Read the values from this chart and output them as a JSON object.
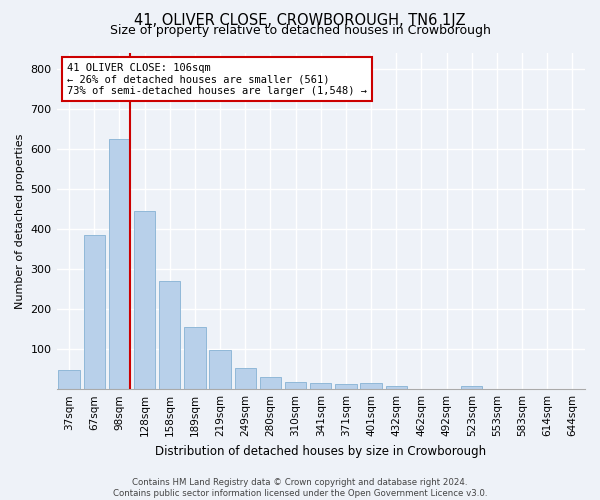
{
  "title": "41, OLIVER CLOSE, CROWBOROUGH, TN6 1JZ",
  "subtitle": "Size of property relative to detached houses in Crowborough",
  "xlabel": "Distribution of detached houses by size in Crowborough",
  "ylabel": "Number of detached properties",
  "footer_line1": "Contains HM Land Registry data © Crown copyright and database right 2024.",
  "footer_line2": "Contains public sector information licensed under the Open Government Licence v3.0.",
  "categories": [
    "37sqm",
    "67sqm",
    "98sqm",
    "128sqm",
    "158sqm",
    "189sqm",
    "219sqm",
    "249sqm",
    "280sqm",
    "310sqm",
    "341sqm",
    "371sqm",
    "401sqm",
    "432sqm",
    "462sqm",
    "492sqm",
    "523sqm",
    "553sqm",
    "583sqm",
    "614sqm",
    "644sqm"
  ],
  "values": [
    47,
    385,
    625,
    445,
    270,
    155,
    98,
    52,
    30,
    18,
    15,
    12,
    15,
    8,
    0,
    0,
    8,
    0,
    0,
    0,
    0
  ],
  "bar_color": "#b8d0ea",
  "bar_edge_color": "#90b8d8",
  "vline_color": "#cc0000",
  "annotation_text": "41 OLIVER CLOSE: 106sqm\n← 26% of detached houses are smaller (561)\n73% of semi-detached houses are larger (1,548) →",
  "annotation_box_color": "#ffffff",
  "annotation_box_edge_color": "#cc0000",
  "ylim": [
    0,
    840
  ],
  "background_color": "#eef2f8",
  "plot_bg_color": "#eef2f8",
  "grid_color": "#ffffff",
  "title_fontsize": 10.5,
  "subtitle_fontsize": 9,
  "xlabel_fontsize": 8.5,
  "ylabel_fontsize": 8,
  "tick_fontsize": 7.5,
  "yticks": [
    0,
    100,
    200,
    300,
    400,
    500,
    600,
    700,
    800
  ]
}
